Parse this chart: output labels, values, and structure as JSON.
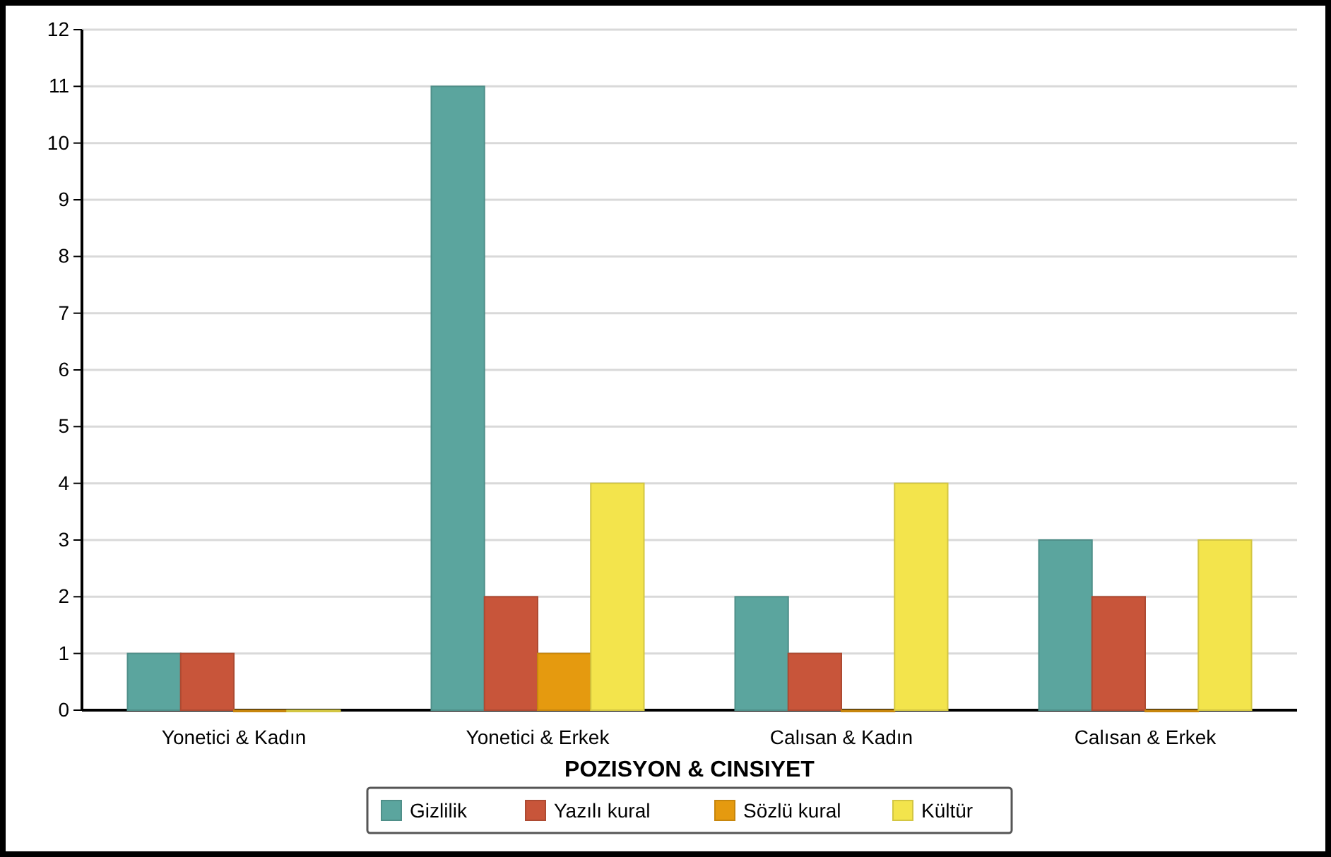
{
  "chart_data": {
    "type": "bar",
    "xlabel": "POZISYON & CINSIYET",
    "categories": [
      "Yonetici & Kadın",
      "Yonetici & Erkek",
      "Calısan & Kadın",
      "Calısan & Erkek"
    ],
    "series": [
      {
        "name": "Gizlilik",
        "color": "#5ba59e",
        "values": [
          1,
          11,
          2,
          3
        ]
      },
      {
        "name": "Yazılı kural",
        "color": "#c8553a",
        "values": [
          1,
          2,
          1,
          2
        ]
      },
      {
        "name": "Sözlü kural",
        "color": "#e59a0f",
        "values": [
          0,
          1,
          0,
          0
        ]
      },
      {
        "name": "Kültür",
        "color": "#f3e44c",
        "values": [
          0,
          4,
          4,
          3
        ]
      }
    ],
    "ylim": [
      0,
      12
    ],
    "yticks": [
      0,
      1,
      2,
      3,
      4,
      5,
      6,
      7,
      8,
      9,
      10,
      11,
      12
    ],
    "grid": "y",
    "legend": "bottom"
  }
}
